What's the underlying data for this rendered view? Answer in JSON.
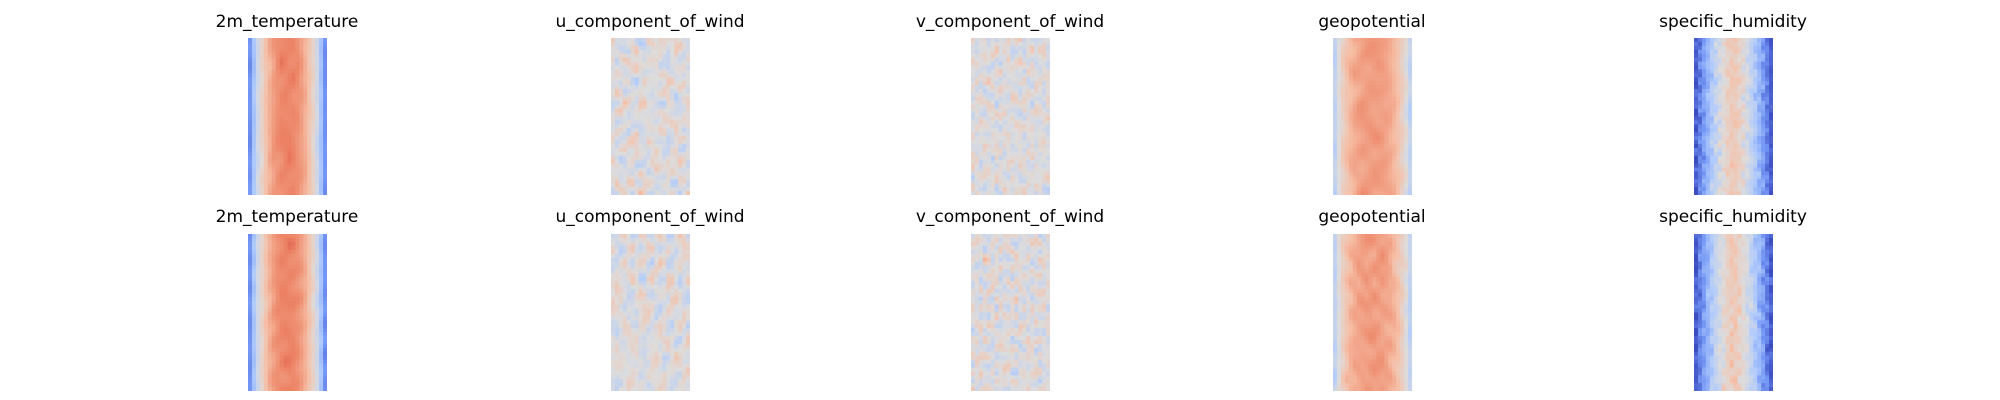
{
  "figure": {
    "background": "#ffffff",
    "colormap": "coolwarm",
    "colormap_stops": [
      "#3b4cc0",
      "#7396f5",
      "#b0cbfc",
      "#dddcdc",
      "#f6bfa6",
      "#ec8062",
      "#b40426"
    ]
  },
  "chart_data": [
    {
      "type": "heatmap",
      "title": "2m_temperature",
      "row": 1,
      "col": 1,
      "style": "warm-band",
      "seed": 11
    },
    {
      "type": "heatmap",
      "title": "u_component_of_wind",
      "row": 1,
      "col": 2,
      "style": "wind",
      "seed": 23
    },
    {
      "type": "heatmap",
      "title": "v_component_of_wind",
      "row": 1,
      "col": 3,
      "style": "wind-v",
      "seed": 37
    },
    {
      "type": "heatmap",
      "title": "geopotential",
      "row": 1,
      "col": 4,
      "style": "geo",
      "seed": 41
    },
    {
      "type": "heatmap",
      "title": "specific_humidity",
      "row": 1,
      "col": 5,
      "style": "humid",
      "seed": 53
    },
    {
      "type": "heatmap",
      "title": "2m_temperature",
      "row": 2,
      "col": 1,
      "style": "warm-band",
      "seed": 67
    },
    {
      "type": "heatmap",
      "title": "u_component_of_wind",
      "row": 2,
      "col": 2,
      "style": "wind",
      "seed": 71
    },
    {
      "type": "heatmap",
      "title": "v_component_of_wind",
      "row": 2,
      "col": 3,
      "style": "wind-v",
      "seed": 83
    },
    {
      "type": "heatmap",
      "title": "geopotential",
      "row": 2,
      "col": 4,
      "style": "geo",
      "seed": 97
    },
    {
      "type": "heatmap",
      "title": "specific_humidity",
      "row": 2,
      "col": 5,
      "style": "humid",
      "seed": 101
    }
  ]
}
